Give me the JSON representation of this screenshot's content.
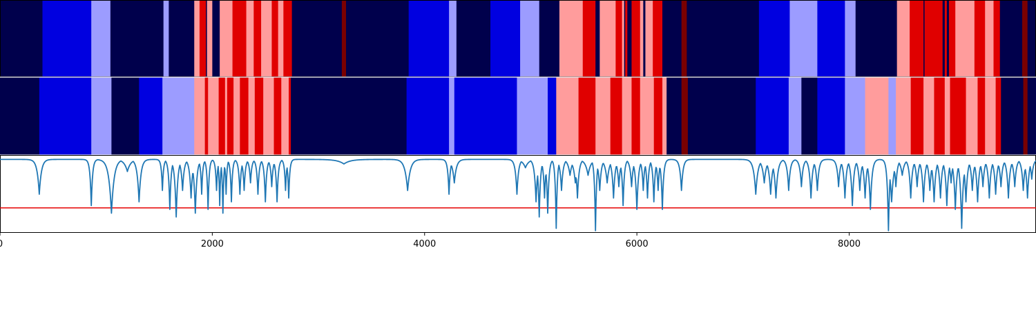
{
  "chart_data": {
    "type": "heatmap",
    "xlim": [
      0,
      9760
    ],
    "xticks": [
      0,
      2000,
      4000,
      6000,
      8000
    ],
    "xtick_labels": [
      "0",
      "2000",
      "4000",
      "6000",
      "8000"
    ],
    "colors": {
      "s0": "#00004c",
      "s1": "#0000e0",
      "s2": "#9c9cff",
      "s3": "#ff9c9c",
      "s4": "#e00000",
      "s5": "#7a0000",
      "line": "#1f77b4",
      "threshold": "#e60000"
    },
    "rows": [
      {
        "segments": [
          [
            0,
            400,
            "s0"
          ],
          [
            400,
            860,
            "s1"
          ],
          [
            860,
            1040,
            "s2"
          ],
          [
            1040,
            1540,
            "s0"
          ],
          [
            1540,
            1590,
            "s2"
          ],
          [
            1590,
            1830,
            "s0"
          ],
          [
            1830,
            1880,
            "s3"
          ],
          [
            1880,
            1940,
            "s4"
          ],
          [
            1940,
            1950,
            "s0"
          ],
          [
            1950,
            2000,
            "s3"
          ],
          [
            2000,
            2070,
            "s0"
          ],
          [
            2070,
            2190,
            "s3"
          ],
          [
            2190,
            2320,
            "s4"
          ],
          [
            2320,
            2390,
            "s3"
          ],
          [
            2390,
            2460,
            "s4"
          ],
          [
            2460,
            2560,
            "s3"
          ],
          [
            2560,
            2620,
            "s4"
          ],
          [
            2620,
            2670,
            "s3"
          ],
          [
            2670,
            2750,
            "s4"
          ],
          [
            2750,
            3220,
            "s0"
          ],
          [
            3220,
            3260,
            "s5"
          ],
          [
            3260,
            3850,
            "s0"
          ],
          [
            3850,
            4230,
            "s1"
          ],
          [
            4230,
            4300,
            "s2"
          ],
          [
            4300,
            4620,
            "s0"
          ],
          [
            4620,
            4900,
            "s1"
          ],
          [
            4900,
            5080,
            "s2"
          ],
          [
            5080,
            5270,
            "s0"
          ],
          [
            5270,
            5490,
            "s3"
          ],
          [
            5490,
            5610,
            "s4"
          ],
          [
            5610,
            5650,
            "s0"
          ],
          [
            5650,
            5800,
            "s3"
          ],
          [
            5800,
            5860,
            "s4"
          ],
          [
            5860,
            5880,
            "s3"
          ],
          [
            5880,
            5890,
            "s0"
          ],
          [
            5890,
            5910,
            "s4"
          ],
          [
            5910,
            5950,
            "s0"
          ],
          [
            5950,
            6030,
            "s4"
          ],
          [
            6030,
            6060,
            "s3"
          ],
          [
            6060,
            6080,
            "s0"
          ],
          [
            6080,
            6150,
            "s3"
          ],
          [
            6150,
            6240,
            "s4"
          ],
          [
            6240,
            6420,
            "s0"
          ],
          [
            6420,
            6470,
            "s5"
          ],
          [
            6470,
            7150,
            "s0"
          ],
          [
            7150,
            7440,
            "s1"
          ],
          [
            7440,
            7700,
            "s2"
          ],
          [
            7700,
            7960,
            "s1"
          ],
          [
            7960,
            8060,
            "s2"
          ],
          [
            8060,
            8200,
            "s0"
          ],
          [
            8200,
            8450,
            "s0"
          ],
          [
            8450,
            8570,
            "s3"
          ],
          [
            8570,
            8700,
            "s4"
          ],
          [
            8700,
            8710,
            "s0"
          ],
          [
            8710,
            8880,
            "s4"
          ],
          [
            8880,
            8900,
            "s0"
          ],
          [
            8900,
            8920,
            "s4"
          ],
          [
            8920,
            8940,
            "s0"
          ],
          [
            8940,
            9000,
            "s4"
          ],
          [
            9000,
            9080,
            "s3"
          ],
          [
            9080,
            9180,
            "s3"
          ],
          [
            9180,
            9280,
            "s4"
          ],
          [
            9280,
            9360,
            "s3"
          ],
          [
            9360,
            9420,
            "s4"
          ],
          [
            9420,
            9630,
            "s0"
          ],
          [
            9630,
            9680,
            "s5"
          ],
          [
            9680,
            9760,
            "s0"
          ]
        ]
      },
      {
        "segments": [
          [
            0,
            370,
            "s0"
          ],
          [
            370,
            860,
            "s1"
          ],
          [
            860,
            1050,
            "s2"
          ],
          [
            1050,
            1310,
            "s0"
          ],
          [
            1310,
            1530,
            "s1"
          ],
          [
            1530,
            1830,
            "s2"
          ],
          [
            1830,
            1930,
            "s3"
          ],
          [
            1930,
            1960,
            "s4"
          ],
          [
            1960,
            2060,
            "s3"
          ],
          [
            2060,
            2120,
            "s4"
          ],
          [
            2120,
            2140,
            "s3"
          ],
          [
            2140,
            2200,
            "s4"
          ],
          [
            2200,
            2260,
            "s3"
          ],
          [
            2260,
            2340,
            "s4"
          ],
          [
            2340,
            2400,
            "s3"
          ],
          [
            2400,
            2480,
            "s4"
          ],
          [
            2480,
            2580,
            "s3"
          ],
          [
            2580,
            2650,
            "s4"
          ],
          [
            2650,
            2720,
            "s3"
          ],
          [
            2720,
            2740,
            "s4"
          ],
          [
            2740,
            3830,
            "s0"
          ],
          [
            3830,
            4230,
            "s1"
          ],
          [
            4230,
            4280,
            "s2"
          ],
          [
            4280,
            4870,
            "s1"
          ],
          [
            4870,
            5090,
            "s2"
          ],
          [
            5090,
            5160,
            "s2"
          ],
          [
            5160,
            5240,
            "s1"
          ],
          [
            5240,
            5450,
            "s3"
          ],
          [
            5450,
            5610,
            "s4"
          ],
          [
            5610,
            5750,
            "s3"
          ],
          [
            5750,
            5860,
            "s4"
          ],
          [
            5860,
            5950,
            "s3"
          ],
          [
            5950,
            6030,
            "s4"
          ],
          [
            6030,
            6160,
            "s3"
          ],
          [
            6160,
            6240,
            "s4"
          ],
          [
            6240,
            6280,
            "s3"
          ],
          [
            6280,
            6420,
            "s0"
          ],
          [
            6420,
            6480,
            "s5"
          ],
          [
            6480,
            7120,
            "s0"
          ],
          [
            7120,
            7430,
            "s1"
          ],
          [
            7430,
            7550,
            "s2"
          ],
          [
            7550,
            7700,
            "s0"
          ],
          [
            7700,
            7960,
            "s1"
          ],
          [
            7960,
            8150,
            "s2"
          ],
          [
            8150,
            8370,
            "s3"
          ],
          [
            8370,
            8440,
            "s2"
          ],
          [
            8440,
            8580,
            "s3"
          ],
          [
            8580,
            8700,
            "s4"
          ],
          [
            8700,
            8800,
            "s3"
          ],
          [
            8800,
            8900,
            "s4"
          ],
          [
            8900,
            8950,
            "s3"
          ],
          [
            8950,
            9100,
            "s4"
          ],
          [
            9100,
            9210,
            "s3"
          ],
          [
            9210,
            9280,
            "s4"
          ],
          [
            9280,
            9380,
            "s3"
          ],
          [
            9380,
            9430,
            "s4"
          ],
          [
            9430,
            9640,
            "s0"
          ],
          [
            9640,
            9680,
            "s5"
          ],
          [
            9680,
            9760,
            "s0"
          ]
        ]
      }
    ],
    "line": {
      "ylim": [
        0,
        1
      ],
      "threshold": 0.32,
      "baseline": 0.96,
      "dips": [
        [
          370,
          0.5,
          20
        ],
        [
          860,
          0.35,
          12
        ],
        [
          1050,
          0.25,
          25
        ],
        [
          1200,
          0.8,
          30
        ],
        [
          1310,
          0.4,
          18
        ],
        [
          1530,
          0.55,
          10
        ],
        [
          1600,
          0.3,
          12
        ],
        [
          1660,
          0.2,
          15
        ],
        [
          1720,
          0.55,
          15
        ],
        [
          1800,
          0.45,
          15
        ],
        [
          1840,
          0.25,
          15
        ],
        [
          1900,
          0.5,
          10
        ],
        [
          1960,
          0.3,
          10
        ],
        [
          2040,
          0.55,
          10
        ],
        [
          2070,
          0.35,
          8
        ],
        [
          2100,
          0.25,
          8
        ],
        [
          2130,
          0.5,
          8
        ],
        [
          2180,
          0.4,
          10
        ],
        [
          2260,
          0.5,
          12
        ],
        [
          2300,
          0.55,
          12
        ],
        [
          2360,
          0.65,
          12
        ],
        [
          2430,
          0.5,
          12
        ],
        [
          2500,
          0.4,
          12
        ],
        [
          2560,
          0.6,
          12
        ],
        [
          2610,
          0.4,
          12
        ],
        [
          2690,
          0.55,
          10
        ],
        [
          2720,
          0.45,
          10
        ],
        [
          3200,
          0.95,
          40
        ],
        [
          3240,
          0.9,
          60
        ],
        [
          3840,
          0.55,
          25
        ],
        [
          4230,
          0.5,
          12
        ],
        [
          4280,
          0.65,
          20
        ],
        [
          4870,
          0.5,
          15
        ],
        [
          4950,
          0.85,
          30
        ],
        [
          5050,
          0.4,
          15
        ],
        [
          5080,
          0.2,
          12
        ],
        [
          5130,
          0.45,
          12
        ],
        [
          5160,
          0.25,
          12
        ],
        [
          5240,
          0.05,
          10
        ],
        [
          5290,
          0.55,
          15
        ],
        [
          5370,
          0.75,
          20
        ],
        [
          5420,
          0.65,
          20
        ],
        [
          5440,
          0.45,
          15
        ],
        [
          5540,
          0.75,
          25
        ],
        [
          5610,
          0.02,
          10
        ],
        [
          5650,
          0.55,
          15
        ],
        [
          5720,
          0.65,
          20
        ],
        [
          5780,
          0.45,
          15
        ],
        [
          5830,
          0.6,
          15
        ],
        [
          5870,
          0.35,
          12
        ],
        [
          5950,
          0.6,
          15
        ],
        [
          6000,
          0.3,
          15
        ],
        [
          6060,
          0.55,
          12
        ],
        [
          6100,
          0.45,
          12
        ],
        [
          6160,
          0.4,
          12
        ],
        [
          6200,
          0.55,
          12
        ],
        [
          6240,
          0.3,
          12
        ],
        [
          6420,
          0.55,
          15
        ],
        [
          7120,
          0.5,
          20
        ],
        [
          7200,
          0.65,
          20
        ],
        [
          7260,
          0.5,
          18
        ],
        [
          7310,
          0.45,
          18
        ],
        [
          7430,
          0.55,
          15
        ],
        [
          7550,
          0.6,
          15
        ],
        [
          7640,
          0.45,
          15
        ],
        [
          7700,
          0.55,
          15
        ],
        [
          7900,
          0.6,
          15
        ],
        [
          7960,
          0.45,
          15
        ],
        [
          8030,
          0.35,
          15
        ],
        [
          8100,
          0.55,
          15
        ],
        [
          8150,
          0.45,
          15
        ],
        [
          8200,
          0.3,
          15
        ],
        [
          8370,
          0.02,
          12
        ],
        [
          8400,
          0.4,
          20
        ],
        [
          8440,
          0.6,
          15
        ],
        [
          8500,
          0.75,
          20
        ],
        [
          8580,
          0.45,
          15
        ],
        [
          8640,
          0.6,
          15
        ],
        [
          8700,
          0.4,
          15
        ],
        [
          8760,
          0.55,
          15
        ],
        [
          8800,
          0.4,
          15
        ],
        [
          8860,
          0.45,
          15
        ],
        [
          8920,
          0.35,
          15
        ],
        [
          8960,
          0.65,
          15
        ],
        [
          9000,
          0.3,
          15
        ],
        [
          9060,
          0.05,
          15
        ],
        [
          9100,
          0.4,
          15
        ],
        [
          9160,
          0.55,
          15
        ],
        [
          9210,
          0.4,
          15
        ],
        [
          9260,
          0.6,
          15
        ],
        [
          9320,
          0.45,
          15
        ],
        [
          9380,
          0.5,
          15
        ],
        [
          9430,
          0.6,
          15
        ],
        [
          9500,
          0.45,
          15
        ],
        [
          9560,
          0.6,
          15
        ],
        [
          9640,
          0.55,
          15
        ],
        [
          9680,
          0.45,
          15
        ],
        [
          9720,
          0.7,
          15
        ]
      ]
    }
  }
}
